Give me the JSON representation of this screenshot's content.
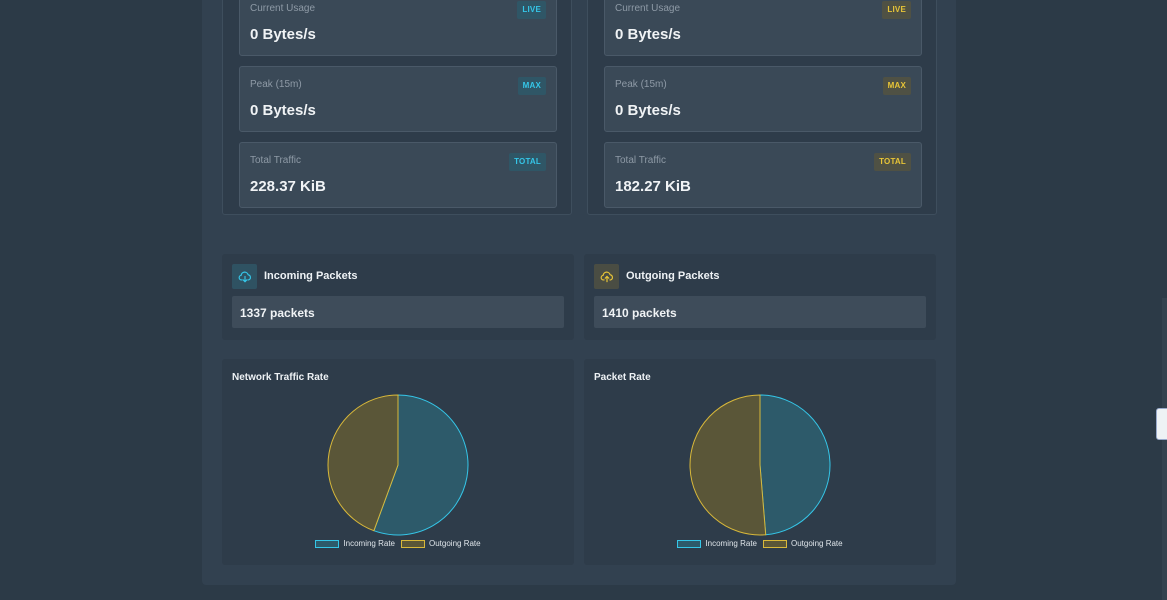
{
  "incoming": {
    "current_label": "Current Usage",
    "current_value": "0 Bytes/s",
    "live_badge": "LIVE",
    "peak_label": "Peak (15m)",
    "peak_value": "0 Bytes/s",
    "max_badge": "MAX",
    "total_label": "Total Traffic",
    "total_value": "228.37 KiB",
    "total_badge": "TOTAL"
  },
  "outgoing": {
    "current_label": "Current Usage",
    "current_value": "0 Bytes/s",
    "live_badge": "LIVE",
    "peak_label": "Peak (15m)",
    "peak_value": "0 Bytes/s",
    "max_badge": "MAX",
    "total_label": "Total Traffic",
    "total_value": "182.27 KiB",
    "total_badge": "TOTAL"
  },
  "packets": {
    "incoming_title": "Incoming Packets",
    "incoming_value": "1337 packets",
    "outgoing_title": "Outgoing Packets",
    "outgoing_value": "1410 packets"
  },
  "icons": {
    "incoming": "cloud-download-icon",
    "outgoing": "cloud-upload-icon"
  },
  "colors": {
    "incoming": "#35c6e8",
    "incoming_fill": "#2d5a6a",
    "outgoing": "#d8b83a",
    "outgoing_fill": "#5a5638"
  },
  "chart_data": [
    {
      "type": "pie",
      "title": "Network Traffic Rate",
      "categories": [
        "Incoming Rate",
        "Outgoing Rate"
      ],
      "values": [
        55.6,
        44.4
      ]
    },
    {
      "type": "pie",
      "title": "Packet Rate",
      "categories": [
        "Incoming Rate",
        "Outgoing Rate"
      ],
      "values": [
        48.7,
        51.3
      ]
    }
  ]
}
